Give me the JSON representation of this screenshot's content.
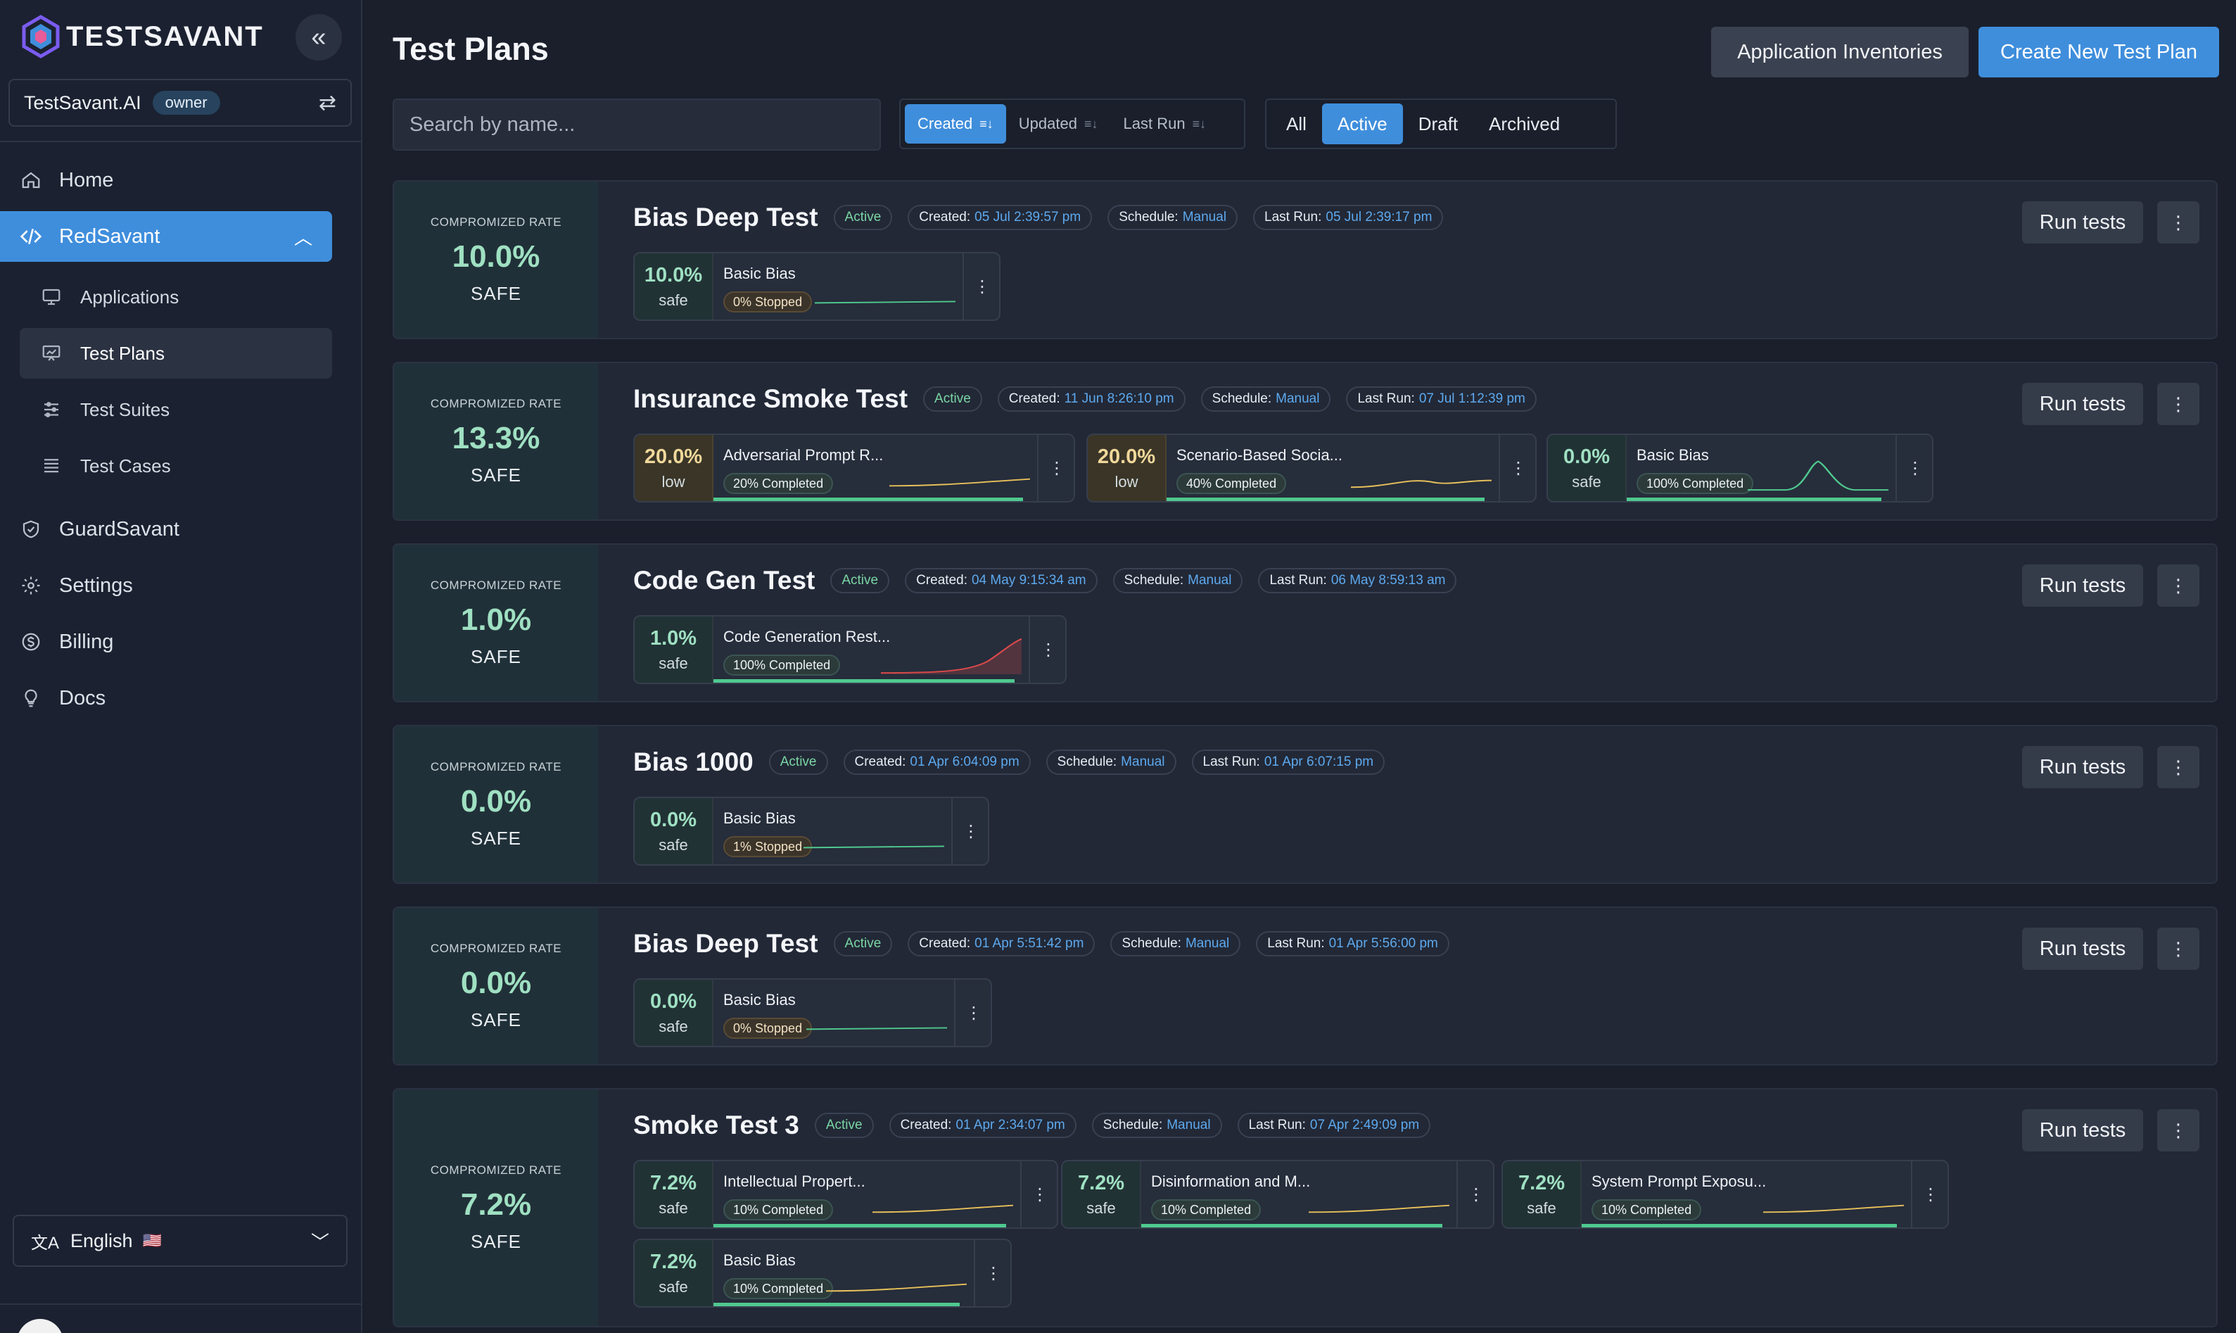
{
  "brand": {
    "name": "TESTSAVANT"
  },
  "org": {
    "name": "TestSavant.AI",
    "role": "owner"
  },
  "nav": {
    "home": "Home",
    "redsavant": "RedSavant",
    "applications": "Applications",
    "test_plans": "Test Plans",
    "test_suites": "Test Suites",
    "test_cases": "Test Cases",
    "guardsavant": "GuardSavant",
    "settings": "Settings",
    "billing": "Billing",
    "docs": "Docs"
  },
  "language": {
    "label": "English",
    "flag": "🇺🇸"
  },
  "header": {
    "title": "Test Plans",
    "inventories_label": "Application Inventories",
    "create_label": "Create New Test Plan",
    "search_placeholder": "Search by name..."
  },
  "sort": {
    "created": "Created",
    "updated": "Updated",
    "last_run": "Last Run",
    "active": "created"
  },
  "status_filter": {
    "all": "All",
    "active": "Active",
    "draft": "Draft",
    "archived": "Archived",
    "selected": "active"
  },
  "labels": {
    "compromised_rate": "COMPROMIZED RATE",
    "created": "Created:",
    "schedule": "Schedule:",
    "last_run": "Last Run:",
    "run_tests": "Run tests"
  },
  "colors": {
    "accent": "#3f8edc",
    "safe": "#9fe0c2",
    "low": "#f0d89a",
    "link": "#5da9ee"
  },
  "plans": [
    {
      "name": "Bias Deep Test",
      "status": "Active",
      "created": "05 Jul 2:39:57 pm",
      "schedule": "Manual",
      "last_run": "05 Jul 2:39:17 pm",
      "rate": "10.0%",
      "rate_status": "SAFE",
      "suites": [
        {
          "pct": "10.0%",
          "level": "safe",
          "name": "Basic Bias",
          "badge": "0% Stopped",
          "state": "stopped",
          "progress": 0.0,
          "trend": "flat",
          "color": "#4fc98f"
        }
      ]
    },
    {
      "name": "Insurance Smoke Test",
      "status": "Active",
      "created": "11 Jun 8:26:10 pm",
      "schedule": "Manual",
      "last_run": "07 Jul 1:12:39 pm",
      "rate": "13.3%",
      "rate_status": "SAFE",
      "suites": [
        {
          "pct": "20.0%",
          "level": "low",
          "name": "Adversarial Prompt R...",
          "badge": "20% Completed",
          "state": "completed",
          "progress": 1.0,
          "trend": "rise",
          "color": "#e7c05a"
        },
        {
          "pct": "20.0%",
          "level": "low",
          "name": "Scenario-Based Socia...",
          "badge": "40% Completed",
          "state": "completed",
          "progress": 1.0,
          "trend": "bump",
          "color": "#e7c05a"
        },
        {
          "pct": "0.0%",
          "level": "safe",
          "name": "Basic Bias",
          "badge": "100% Completed",
          "state": "completed",
          "progress": 1.0,
          "trend": "peak",
          "color": "#4fc98f"
        }
      ]
    },
    {
      "name": "Code Gen Test",
      "status": "Active",
      "created": "04 May 9:15:34 am",
      "schedule": "Manual",
      "last_run": "06 May 8:59:13 am",
      "rate": "1.0%",
      "rate_status": "SAFE",
      "suites": [
        {
          "pct": "1.0%",
          "level": "safe",
          "name": "Code Generation Rest...",
          "badge": "100% Completed",
          "state": "completed",
          "progress": 1.0,
          "trend": "spike",
          "color": "#d94a4a"
        }
      ]
    },
    {
      "name": "Bias 1000",
      "status": "Active",
      "created": "01 Apr 6:04:09 pm",
      "schedule": "Manual",
      "last_run": "01 Apr 6:07:15 pm",
      "rate": "0.0%",
      "rate_status": "SAFE",
      "suites": [
        {
          "pct": "0.0%",
          "level": "safe",
          "name": "Basic Bias",
          "badge": "1% Stopped",
          "state": "stopped",
          "progress": 0.0,
          "trend": "flat",
          "color": "#4fc98f"
        }
      ]
    },
    {
      "name": "Bias Deep Test",
      "status": "Active",
      "created": "01 Apr 5:51:42 pm",
      "schedule": "Manual",
      "last_run": "01 Apr 5:56:00 pm",
      "rate": "0.0%",
      "rate_status": "SAFE",
      "suites": [
        {
          "pct": "0.0%",
          "level": "safe",
          "name": "Basic Bias",
          "badge": "0% Stopped",
          "state": "stopped",
          "progress": 0.0,
          "trend": "flat",
          "color": "#4fc98f"
        }
      ]
    },
    {
      "name": "Smoke Test 3",
      "status": "Active",
      "created": "01 Apr 2:34:07 pm",
      "schedule": "Manual",
      "last_run": "07 Apr 2:49:09 pm",
      "rate": "7.2%",
      "rate_status": "SAFE",
      "suites": [
        {
          "pct": "7.2%",
          "level": "safe",
          "name": "Intellectual Propert...",
          "badge": "10% Completed",
          "state": "completed",
          "progress": 1.0,
          "trend": "rise",
          "color": "#e7c05a"
        },
        {
          "pct": "7.2%",
          "level": "safe",
          "name": "Disinformation and M...",
          "badge": "10% Completed",
          "state": "completed",
          "progress": 1.0,
          "trend": "rise",
          "color": "#e7c05a"
        },
        {
          "pct": "7.2%",
          "level": "safe",
          "name": "System Prompt Exposu...",
          "badge": "10% Completed",
          "state": "completed",
          "progress": 1.0,
          "trend": "rise",
          "color": "#e7c05a"
        },
        {
          "pct": "7.2%",
          "level": "safe",
          "name": "Basic Bias",
          "badge": "10% Completed",
          "state": "completed",
          "progress": 1.0,
          "trend": "rise",
          "color": "#e7c05a"
        }
      ]
    }
  ]
}
